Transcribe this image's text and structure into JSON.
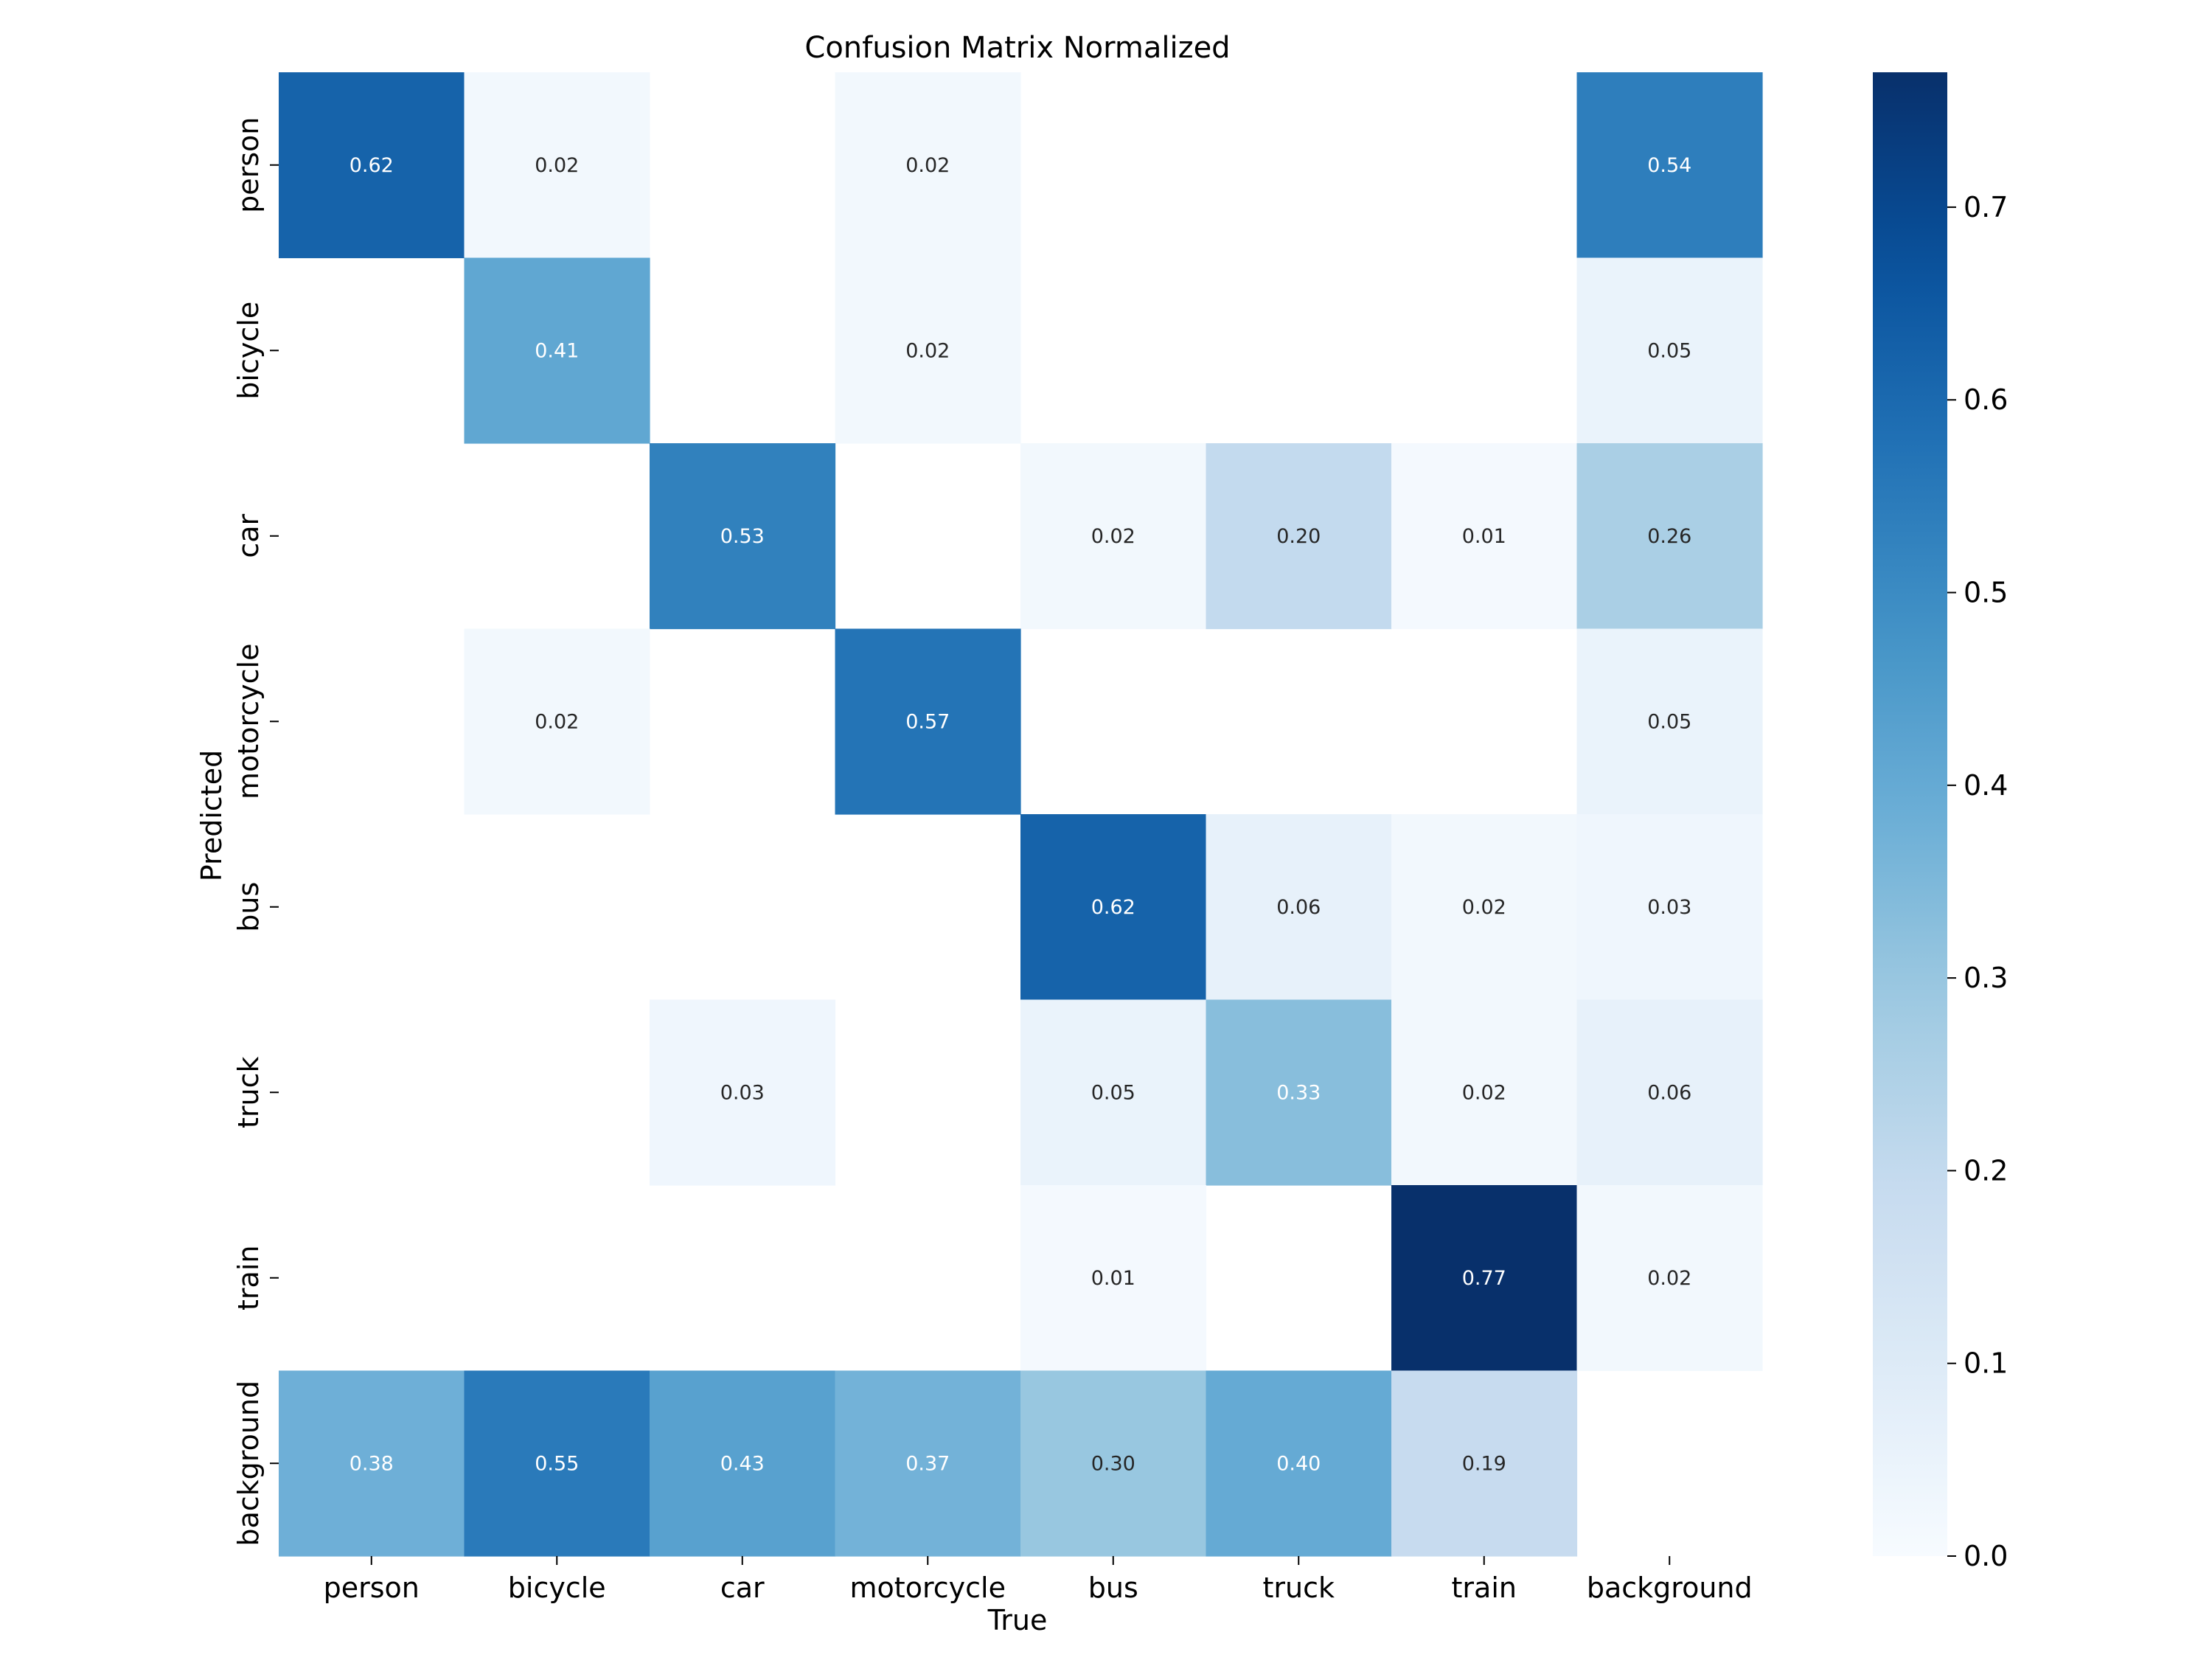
{
  "chart_data": {
    "type": "heatmap",
    "title": "Confusion Matrix Normalized",
    "xlabel": "True",
    "ylabel": "Predicted",
    "x_categories": [
      "person",
      "bicycle",
      "car",
      "motorcycle",
      "bus",
      "truck",
      "train",
      "background"
    ],
    "y_categories": [
      "person",
      "bicycle",
      "car",
      "motorcycle",
      "bus",
      "truck",
      "train",
      "background"
    ],
    "values": [
      [
        0.62,
        0.02,
        null,
        0.02,
        null,
        null,
        null,
        0.54
      ],
      [
        null,
        0.41,
        null,
        0.02,
        null,
        null,
        null,
        0.05
      ],
      [
        null,
        null,
        0.53,
        null,
        0.02,
        0.2,
        0.01,
        0.26
      ],
      [
        null,
        0.02,
        null,
        0.57,
        null,
        null,
        null,
        0.05
      ],
      [
        null,
        null,
        null,
        null,
        0.62,
        0.06,
        0.02,
        0.03
      ],
      [
        null,
        null,
        0.03,
        null,
        0.05,
        0.33,
        0.02,
        0.06
      ],
      [
        null,
        null,
        null,
        null,
        0.01,
        null,
        0.77,
        0.02
      ],
      [
        0.38,
        0.55,
        0.43,
        0.37,
        0.3,
        0.4,
        0.19,
        null
      ]
    ],
    "vmin": 0.0,
    "vmax": 0.77,
    "colormap": "Blues",
    "colorbar_ticks": [
      0.0,
      0.1,
      0.2,
      0.3,
      0.4,
      0.5,
      0.6,
      0.7
    ],
    "colorbar_tick_labels": [
      "0.0",
      "0.1",
      "0.2",
      "0.3",
      "0.4",
      "0.5",
      "0.6",
      "0.7"
    ]
  }
}
